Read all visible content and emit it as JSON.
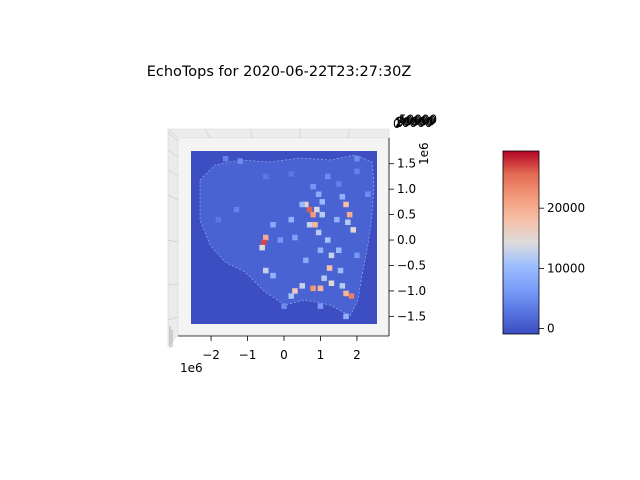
{
  "chart_data": {
    "type": "heatmap",
    "title": "EchoTops for 2020-06-22T23:27:30Z",
    "x_axis": {
      "ticks": [
        -2,
        -1,
        0,
        1,
        2
      ],
      "tick_labels": [
        "−2",
        "−1",
        "0",
        "1",
        "2"
      ],
      "offset_label": "1e6",
      "range": [
        -2.55,
        2.55
      ]
    },
    "y_axis": {
      "ticks": [
        1.5,
        1.0,
        0.5,
        0.0,
        -0.5,
        -1.0,
        -1.5
      ],
      "tick_labels": [
        "1.5",
        "1.0",
        "0.5",
        "0.0",
        "−0.5",
        "−1.0",
        "−1.5"
      ],
      "offset_label": "1e6",
      "range": [
        -1.65,
        1.75
      ]
    },
    "z_axis": {
      "tick_labels_overlapping": [
        "0",
        "10000",
        "20000",
        "30000",
        "40000",
        "50000"
      ]
    },
    "colorbar": {
      "cmap": "coolwarm",
      "ticks": [
        0,
        10000,
        20000
      ],
      "tick_labels": [
        "0",
        "10000",
        "20000"
      ],
      "range": [
        -900,
        29500
      ]
    },
    "cells": [
      {
        "x": -1.6,
        "y": 1.6,
        "v": 4000
      },
      {
        "x": -1.2,
        "y": 1.55,
        "v": 5000
      },
      {
        "x": -0.5,
        "y": 1.25,
        "v": 3000
      },
      {
        "x": 0.2,
        "y": 1.3,
        "v": 3000
      },
      {
        "x": 0.8,
        "y": 1.05,
        "v": 6000
      },
      {
        "x": 1.2,
        "y": 1.25,
        "v": 5000
      },
      {
        "x": 1.5,
        "y": 1.1,
        "v": 4000
      },
      {
        "x": 2.0,
        "y": 1.6,
        "v": 5000
      },
      {
        "x": 2.0,
        "y": 1.35,
        "v": 4000
      },
      {
        "x": 0.7,
        "y": 0.6,
        "v": 26000
      },
      {
        "x": 0.8,
        "y": 0.5,
        "v": 22000
      },
      {
        "x": 0.6,
        "y": 0.7,
        "v": 16000
      },
      {
        "x": 0.9,
        "y": 0.6,
        "v": 14000
      },
      {
        "x": 0.85,
        "y": 0.3,
        "v": 19000
      },
      {
        "x": 0.95,
        "y": 0.15,
        "v": 12000
      },
      {
        "x": 0.7,
        "y": 0.3,
        "v": 13000
      },
      {
        "x": 1.7,
        "y": 0.7,
        "v": 18000
      },
      {
        "x": 1.8,
        "y": 0.5,
        "v": 20000
      },
      {
        "x": 1.75,
        "y": 0.35,
        "v": 12000
      },
      {
        "x": 1.9,
        "y": 0.2,
        "v": 15000
      },
      {
        "x": 1.6,
        "y": 0.85,
        "v": 9000
      },
      {
        "x": 0.2,
        "y": 0.4,
        "v": 9000
      },
      {
        "x": 0.3,
        "y": 0.05,
        "v": 7000
      },
      {
        "x": -0.3,
        "y": 0.3,
        "v": 8000
      },
      {
        "x": -0.5,
        "y": 0.05,
        "v": 20000
      },
      {
        "x": -0.55,
        "y": -0.05,
        "v": 27000
      },
      {
        "x": -0.6,
        "y": -0.15,
        "v": 14000
      },
      {
        "x": -0.5,
        "y": -0.6,
        "v": 13000
      },
      {
        "x": -0.3,
        "y": -0.7,
        "v": 9000
      },
      {
        "x": 1.2,
        "y": 0.0,
        "v": 11000
      },
      {
        "x": 1.3,
        "y": -0.3,
        "v": 13000
      },
      {
        "x": 1.25,
        "y": -0.55,
        "v": 18000
      },
      {
        "x": 1.1,
        "y": -0.75,
        "v": 12000
      },
      {
        "x": 0.5,
        "y": -0.9,
        "v": 13000
      },
      {
        "x": 0.8,
        "y": -0.95,
        "v": 22000
      },
      {
        "x": 1.0,
        "y": -0.95,
        "v": 19000
      },
      {
        "x": 1.3,
        "y": -0.85,
        "v": 15000
      },
      {
        "x": 0.3,
        "y": -1.0,
        "v": 17000
      },
      {
        "x": 0.2,
        "y": -1.1,
        "v": 11000
      },
      {
        "x": 1.6,
        "y": -0.9,
        "v": 12000
      },
      {
        "x": 1.7,
        "y": -1.05,
        "v": 19000
      },
      {
        "x": 1.85,
        "y": -1.1,
        "v": 24000
      },
      {
        "x": 1.7,
        "y": -1.5,
        "v": 9000
      },
      {
        "x": 1.55,
        "y": -0.6,
        "v": 10000
      },
      {
        "x": 0.5,
        "y": 0.7,
        "v": 10000
      },
      {
        "x": 0.95,
        "y": 0.9,
        "v": 8000
      },
      {
        "x": 1.05,
        "y": 0.75,
        "v": 10000
      },
      {
        "x": 1.05,
        "y": 0.5,
        "v": 12000
      },
      {
        "x": 1.0,
        "y": -0.2,
        "v": 9000
      },
      {
        "x": 1.45,
        "y": 0.4,
        "v": 9000
      },
      {
        "x": 1.5,
        "y": -0.2,
        "v": 10000
      },
      {
        "x": 0.6,
        "y": -0.4,
        "v": 8000
      },
      {
        "x": -0.1,
        "y": 0.0,
        "v": 6000
      },
      {
        "x": -1.3,
        "y": 0.6,
        "v": 4000
      },
      {
        "x": -1.8,
        "y": 0.4,
        "v": 3000
      },
      {
        "x": 0.0,
        "y": -1.3,
        "v": 5000
      },
      {
        "x": 1.0,
        "y": -1.3,
        "v": 6000
      },
      {
        "x": 2.3,
        "y": 0.9,
        "v": 5000
      },
      {
        "x": 2.0,
        "y": -0.3,
        "v": 6000
      }
    ]
  }
}
